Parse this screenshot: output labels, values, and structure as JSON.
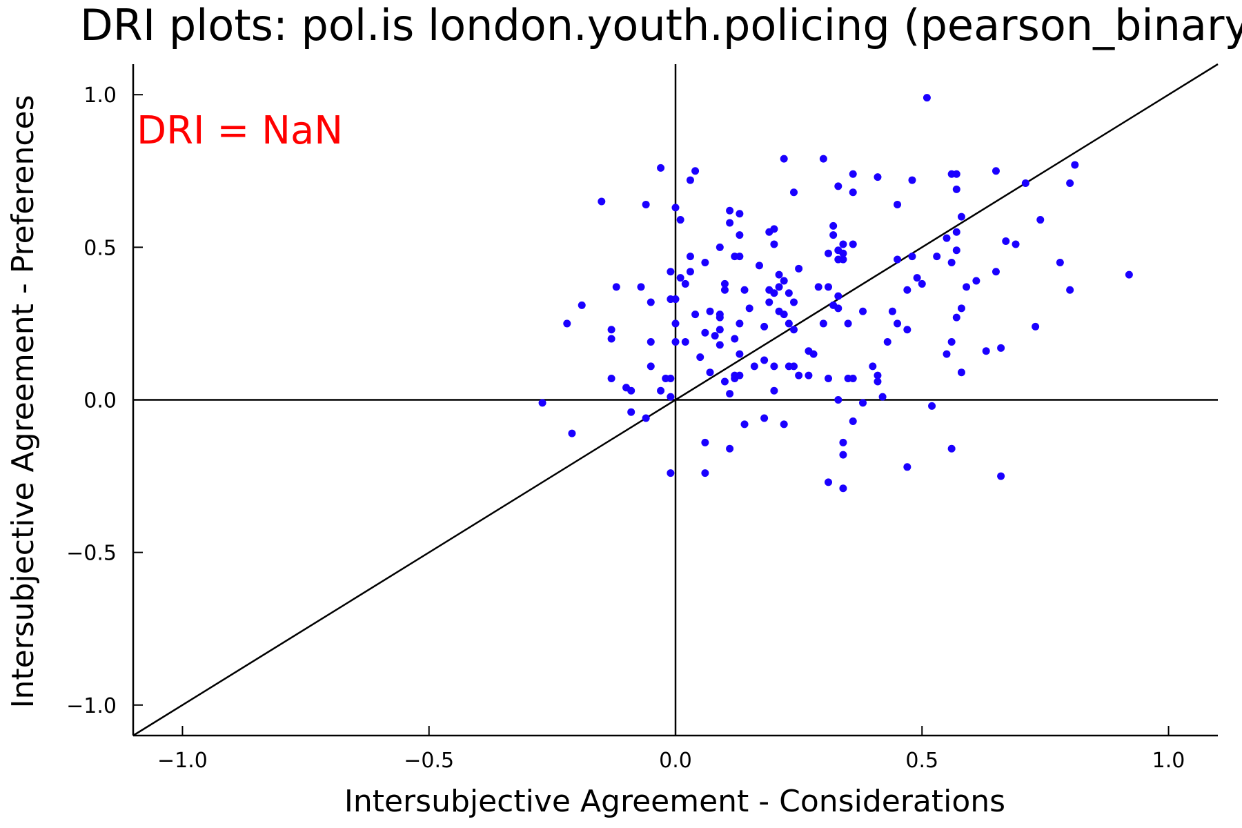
{
  "chart_data": {
    "type": "scatter",
    "title": "DRI plots: pol.is london.youth.policing (pearson_binary)",
    "xlabel": "Intersubjective Agreement - Considerations",
    "ylabel": "Intersubjective Agreement - Preferences",
    "xlim": [
      -1.1,
      1.1
    ],
    "ylim": [
      -1.1,
      1.1
    ],
    "xticks": [
      -1.0,
      -0.5,
      0.0,
      0.5,
      1.0
    ],
    "yticks": [
      -1.0,
      -0.5,
      0.0,
      0.5,
      1.0
    ],
    "xtick_labels": [
      "−1.0",
      "−0.5",
      "0.0",
      "0.5",
      "1.0"
    ],
    "ytick_labels": [
      "−1.0",
      "−0.5",
      "0.0",
      "0.5",
      "1.0"
    ],
    "grid": false,
    "reference_lines": [
      "x = 0",
      "y = 0",
      "y = x"
    ],
    "annotation": {
      "text": "DRI = NaN",
      "color": "#ff0000"
    },
    "point_color": "#1a00ff",
    "series": [
      {
        "points": [
          [
            0.51,
            0.99
          ],
          [
            0.22,
            0.79
          ],
          [
            0.3,
            0.79
          ],
          [
            0.81,
            0.77
          ],
          [
            -0.03,
            0.76
          ],
          [
            0.04,
            0.75
          ],
          [
            0.56,
            0.74
          ],
          [
            0.57,
            0.74
          ],
          [
            0.65,
            0.75
          ],
          [
            0.36,
            0.74
          ],
          [
            0.41,
            0.73
          ],
          [
            0.48,
            0.72
          ],
          [
            0.03,
            0.72
          ],
          [
            0.71,
            0.71
          ],
          [
            0.8,
            0.71
          ],
          [
            0.33,
            0.7
          ],
          [
            0.57,
            0.69
          ],
          [
            0.24,
            0.68
          ],
          [
            0.36,
            0.68
          ],
          [
            -0.15,
            0.65
          ],
          [
            -0.06,
            0.64
          ],
          [
            0.45,
            0.64
          ],
          [
            0.0,
            0.63
          ],
          [
            0.11,
            0.62
          ],
          [
            0.13,
            0.61
          ],
          [
            0.58,
            0.6
          ],
          [
            0.01,
            0.59
          ],
          [
            0.74,
            0.59
          ],
          [
            0.11,
            0.58
          ],
          [
            0.32,
            0.57
          ],
          [
            0.2,
            0.56
          ],
          [
            0.19,
            0.55
          ],
          [
            0.32,
            0.54
          ],
          [
            0.13,
            0.54
          ],
          [
            0.57,
            0.55
          ],
          [
            0.55,
            0.53
          ],
          [
            0.67,
            0.52
          ],
          [
            0.2,
            0.51
          ],
          [
            0.34,
            0.51
          ],
          [
            0.36,
            0.51
          ],
          [
            0.69,
            0.51
          ],
          [
            0.09,
            0.5
          ],
          [
            0.33,
            0.49
          ],
          [
            0.34,
            0.48
          ],
          [
            0.31,
            0.48
          ],
          [
            0.03,
            0.47
          ],
          [
            0.57,
            0.49
          ],
          [
            0.12,
            0.47
          ],
          [
            0.13,
            0.47
          ],
          [
            0.53,
            0.47
          ],
          [
            0.48,
            0.47
          ],
          [
            0.33,
            0.46
          ],
          [
            0.34,
            0.46
          ],
          [
            0.45,
            0.46
          ],
          [
            0.06,
            0.45
          ],
          [
            0.56,
            0.45
          ],
          [
            0.17,
            0.44
          ],
          [
            0.25,
            0.43
          ],
          [
            0.03,
            0.42
          ],
          [
            -0.01,
            0.42
          ],
          [
            0.65,
            0.42
          ],
          [
            0.78,
            0.45
          ],
          [
            0.92,
            0.41
          ],
          [
            0.01,
            0.4
          ],
          [
            0.21,
            0.41
          ],
          [
            0.49,
            0.4
          ],
          [
            0.22,
            0.39
          ],
          [
            0.5,
            0.38
          ],
          [
            0.61,
            0.39
          ],
          [
            0.1,
            0.38
          ],
          [
            0.02,
            0.38
          ],
          [
            0.21,
            0.37
          ],
          [
            0.29,
            0.37
          ],
          [
            0.31,
            0.37
          ],
          [
            0.59,
            0.37
          ],
          [
            0.8,
            0.36
          ],
          [
            -0.07,
            0.37
          ],
          [
            -0.12,
            0.37
          ],
          [
            0.1,
            0.36
          ],
          [
            0.14,
            0.36
          ],
          [
            0.19,
            0.36
          ],
          [
            0.47,
            0.36
          ],
          [
            0.2,
            0.35
          ],
          [
            0.33,
            0.34
          ],
          [
            0.23,
            0.35
          ],
          [
            -0.01,
            0.33
          ],
          [
            0.0,
            0.33
          ],
          [
            0.19,
            0.32
          ],
          [
            -0.05,
            0.32
          ],
          [
            0.24,
            0.32
          ],
          [
            -0.19,
            0.31
          ],
          [
            0.32,
            0.31
          ],
          [
            0.33,
            0.3
          ],
          [
            0.15,
            0.3
          ],
          [
            0.58,
            0.3
          ],
          [
            0.07,
            0.29
          ],
          [
            0.21,
            0.29
          ],
          [
            0.44,
            0.29
          ],
          [
            0.38,
            0.29
          ],
          [
            0.09,
            0.28
          ],
          [
            0.22,
            0.28
          ],
          [
            0.04,
            0.28
          ],
          [
            0.57,
            0.27
          ],
          [
            0.09,
            0.27
          ],
          [
            -0.22,
            0.25
          ],
          [
            0.0,
            0.25
          ],
          [
            0.13,
            0.25
          ],
          [
            0.3,
            0.25
          ],
          [
            0.35,
            0.25
          ],
          [
            0.45,
            0.25
          ],
          [
            0.73,
            0.24
          ],
          [
            0.18,
            0.24
          ],
          [
            0.23,
            0.25
          ],
          [
            0.24,
            0.23
          ],
          [
            -0.13,
            0.23
          ],
          [
            0.09,
            0.23
          ],
          [
            0.47,
            0.23
          ],
          [
            0.06,
            0.22
          ],
          [
            0.08,
            0.21
          ],
          [
            0.12,
            0.2
          ],
          [
            -0.13,
            0.2
          ],
          [
            -0.05,
            0.19
          ],
          [
            0.0,
            0.19
          ],
          [
            0.02,
            0.19
          ],
          [
            0.09,
            0.18
          ],
          [
            0.43,
            0.19
          ],
          [
            0.56,
            0.19
          ],
          [
            0.27,
            0.16
          ],
          [
            0.63,
            0.16
          ],
          [
            0.66,
            0.17
          ],
          [
            0.28,
            0.15
          ],
          [
            0.13,
            0.15
          ],
          [
            0.55,
            0.15
          ],
          [
            0.05,
            0.14
          ],
          [
            0.18,
            0.13
          ],
          [
            0.2,
            0.11
          ],
          [
            0.23,
            0.11
          ],
          [
            0.4,
            0.11
          ],
          [
            -0.05,
            0.11
          ],
          [
            0.16,
            0.11
          ],
          [
            0.24,
            0.11
          ],
          [
            0.07,
            0.09
          ],
          [
            0.58,
            0.09
          ],
          [
            0.25,
            0.08
          ],
          [
            0.27,
            0.08
          ],
          [
            0.41,
            0.08
          ],
          [
            0.12,
            0.08
          ],
          [
            0.13,
            0.08
          ],
          [
            0.12,
            0.07
          ],
          [
            -0.02,
            0.07
          ],
          [
            -0.01,
            0.07
          ],
          [
            -0.13,
            0.07
          ],
          [
            0.31,
            0.07
          ],
          [
            0.35,
            0.07
          ],
          [
            0.36,
            0.07
          ],
          [
            0.41,
            0.06
          ],
          [
            0.1,
            0.06
          ],
          [
            -0.1,
            0.04
          ],
          [
            -0.09,
            0.03
          ],
          [
            0.2,
            0.03
          ],
          [
            -0.03,
            0.03
          ],
          [
            0.11,
            0.02
          ],
          [
            -0.01,
            0.01
          ],
          [
            0.42,
            0.01
          ],
          [
            0.33,
            0.0
          ],
          [
            -0.27,
            -0.01
          ],
          [
            0.38,
            -0.01
          ],
          [
            0.52,
            -0.02
          ],
          [
            -0.09,
            -0.04
          ],
          [
            -0.06,
            -0.06
          ],
          [
            0.18,
            -0.06
          ],
          [
            0.36,
            -0.07
          ],
          [
            0.22,
            -0.08
          ],
          [
            0.14,
            -0.08
          ],
          [
            -0.21,
            -0.11
          ],
          [
            0.06,
            -0.14
          ],
          [
            0.34,
            -0.14
          ],
          [
            0.11,
            -0.16
          ],
          [
            0.56,
            -0.16
          ],
          [
            0.34,
            -0.18
          ],
          [
            0.47,
            -0.22
          ],
          [
            -0.01,
            -0.24
          ],
          [
            0.06,
            -0.24
          ],
          [
            0.66,
            -0.25
          ],
          [
            0.31,
            -0.27
          ],
          [
            0.34,
            -0.29
          ]
        ]
      }
    ]
  }
}
